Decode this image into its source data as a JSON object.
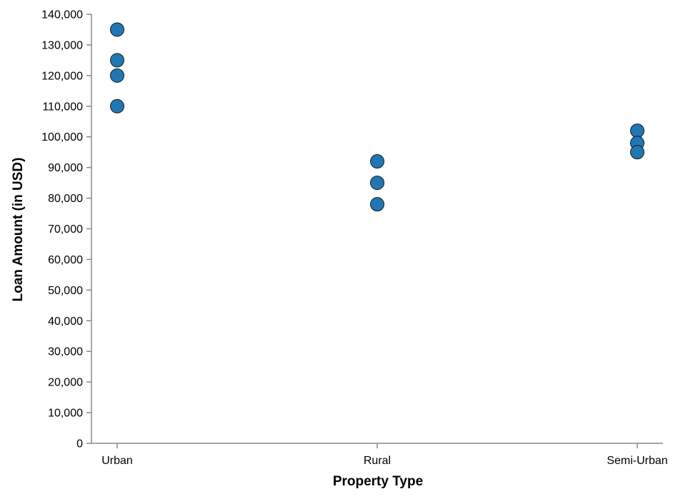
{
  "chart_data": {
    "type": "scatter",
    "title": "",
    "xlabel": "Property Type",
    "ylabel": "Loan Amount (in USD)",
    "categories": [
      "Urban",
      "Rural",
      "Semi-Urban"
    ],
    "points": [
      {
        "x": "Urban",
        "y": 135000
      },
      {
        "x": "Urban",
        "y": 125000
      },
      {
        "x": "Urban",
        "y": 120000
      },
      {
        "x": "Urban",
        "y": 110000
      },
      {
        "x": "Rural",
        "y": 92000
      },
      {
        "x": "Rural",
        "y": 85000
      },
      {
        "x": "Rural",
        "y": 78000
      },
      {
        "x": "Semi-Urban",
        "y": 102000
      },
      {
        "x": "Semi-Urban",
        "y": 98000
      },
      {
        "x": "Semi-Urban",
        "y": 95000
      }
    ],
    "ylim": [
      0,
      140000
    ],
    "yticks": [
      0,
      10000,
      20000,
      30000,
      40000,
      50000,
      60000,
      70000,
      80000,
      90000,
      100000,
      110000,
      120000,
      130000,
      140000
    ],
    "ytick_labels": [
      "0",
      "10,000",
      "20,000",
      "30,000",
      "40,000",
      "50,000",
      "60,000",
      "70,000",
      "80,000",
      "90,000",
      "100,000",
      "110,000",
      "120,000",
      "130,000",
      "140,000"
    ],
    "grid": false,
    "legend": "none",
    "point_color": "#2077b4"
  }
}
